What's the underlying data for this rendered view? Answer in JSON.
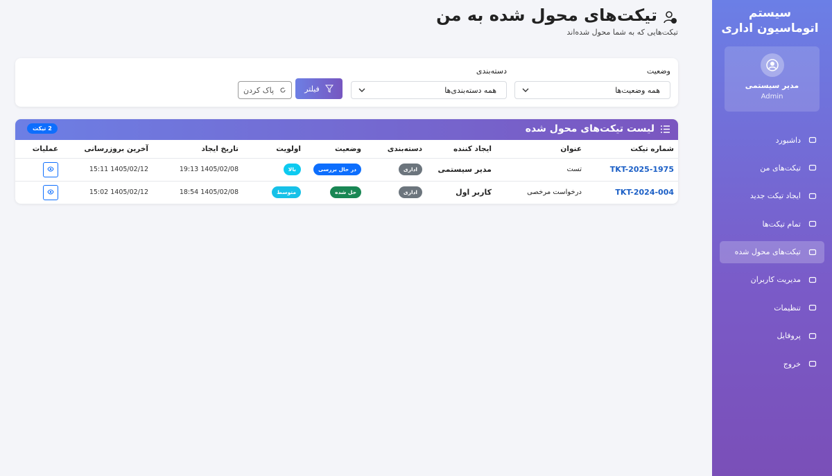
{
  "sidebar": {
    "brand": "سیستم اتوماسیون اداری",
    "user": {
      "name": "مدیر سیستمی",
      "role": "Admin"
    },
    "menu": [
      "داشبورد",
      "تیکت‌های من",
      "ایجاد تیکت جدید",
      "تمام تیکت‌ها",
      "تیکت‌های محول شده",
      "مدیریت کاربران",
      "تنظیمات",
      "پروفایل",
      "خروج"
    ]
  },
  "header": {
    "title": "تیکت‌های محول شده به من",
    "subtitle": "تیکت‌هایی که به شما محول شده‌اند"
  },
  "filters": {
    "status_label": "وضعیت",
    "status_value": "همه وضعیت‌ها",
    "category_label": "دسته‌بندی",
    "category_value": "همه دسته‌بندی‌ها",
    "filter_button": "فیلتر",
    "clear_button": "پاک کردن"
  },
  "table": {
    "title": "لیست تیکت‌های محول شده",
    "badge": "2 تیکت",
    "columns": [
      "شماره تیکت",
      "عنوان",
      "ایجاد کننده",
      "دسته‌بندی",
      "وضعیت",
      "اولویت",
      "تاریخ ایجاد",
      "آخرین بروزرسانی",
      "عملیات"
    ],
    "rows": [
      [
        "TKT-2025-1975",
        "تست",
        "مدیر سیستمی",
        "اداری",
        "در حال بررسی",
        "بالا",
        "1405/02/08 19:13",
        "1405/02/12 15:11"
      ],
      [
        "TKT-2024-004",
        "درخواست مرخصی",
        "کاربر اول",
        "اداری",
        "حل شده",
        "متوسط",
        "1405/02/08 18:54",
        "1405/02/12 15:02"
      ]
    ]
  }
}
